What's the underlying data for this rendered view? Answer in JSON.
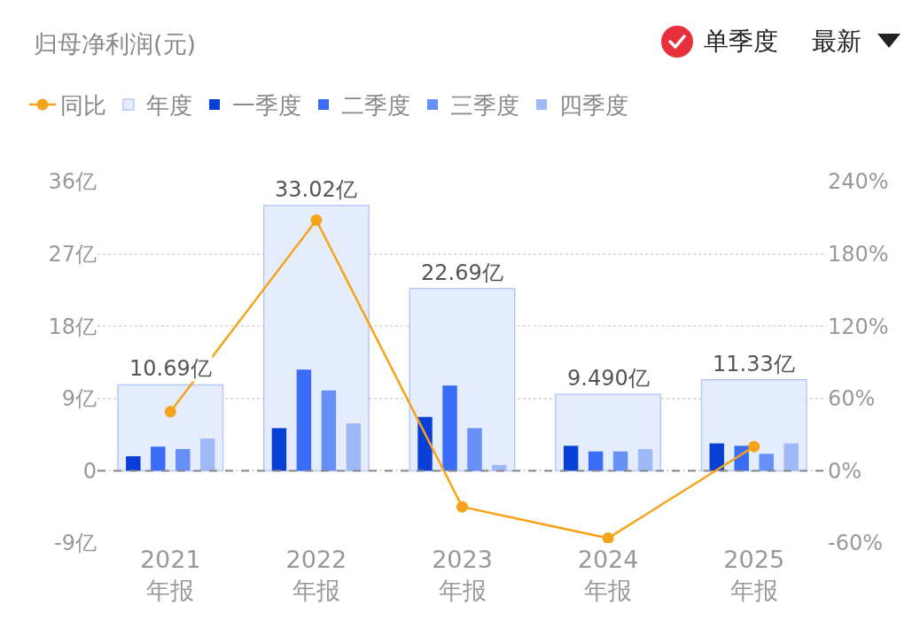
{
  "chart_data": {
    "type": "bar",
    "title": "归母净利润(元)",
    "categories": [
      "2021\n年报",
      "2022\n年报",
      "2023\n年报",
      "2024\n年报",
      "2025\n年报"
    ],
    "series": [
      {
        "name": "年度",
        "color": "#e5edfd",
        "values": [
          10.69,
          33.02,
          22.69,
          9.49,
          11.33
        ],
        "value_labels": [
          "10.69亿",
          "33.02亿",
          "22.69亿",
          "9.490亿",
          "11.33亿"
        ]
      },
      {
        "name": "一季度",
        "color": "#0a3fd6",
        "values": [
          1.8,
          5.3,
          6.7,
          3.1,
          3.4
        ]
      },
      {
        "name": "二季度",
        "color": "#3a6cf5",
        "values": [
          3.0,
          12.6,
          10.6,
          2.4,
          3.1
        ]
      },
      {
        "name": "三季度",
        "color": "#6690f5",
        "values": [
          2.7,
          10.0,
          5.3,
          2.4,
          2.1
        ]
      },
      {
        "name": "四季度",
        "color": "#9fb8f7",
        "values": [
          4.0,
          5.9,
          0.7,
          2.7,
          3.4
        ]
      },
      {
        "name": "同比",
        "type": "line",
        "axis": "y2",
        "color": "#f5a31a",
        "values": [
          49,
          208,
          -30,
          -56,
          20
        ]
      }
    ],
    "ylim": [
      -9,
      36
    ],
    "yticks": [
      {
        "value": -9,
        "label": "-9亿"
      },
      0,
      {
        "value": 9,
        "label": "9亿"
      },
      {
        "value": 18,
        "label": "18亿"
      },
      {
        "value": 27,
        "label": "27亿"
      },
      {
        "value": 36,
        "label": "36亿"
      }
    ],
    "y2lim": [
      -60,
      240
    ],
    "y2ticks": [
      {
        "value": -60,
        "label": "-60%"
      },
      {
        "value": 0,
        "label": "0%"
      },
      {
        "value": 60,
        "label": "60%"
      },
      {
        "value": 120,
        "label": "120%"
      },
      {
        "value": 180,
        "label": "180%"
      },
      {
        "value": 240,
        "label": "240%"
      }
    ],
    "ref_lines": [
      {
        "axis": "y",
        "value": 0,
        "color": "#888888",
        "line_style": "dashed"
      }
    ],
    "grid": "y",
    "legend": "top",
    "marker": "circle",
    "annotations": [
      "单季度",
      "最新"
    ]
  }
}
